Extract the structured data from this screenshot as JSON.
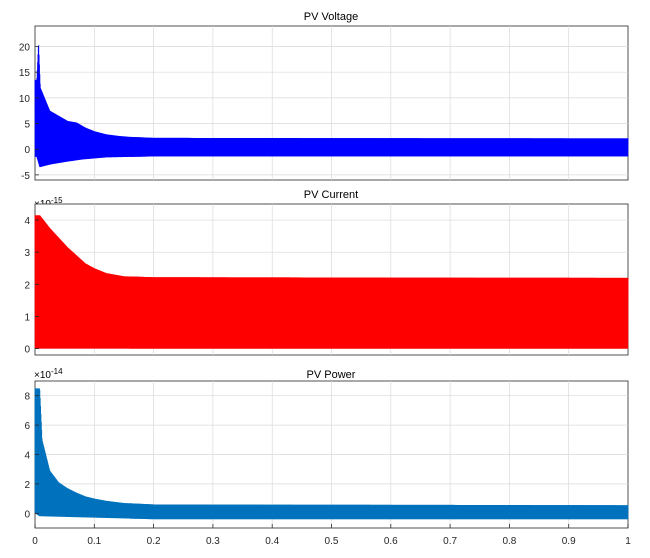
{
  "chart_data": [
    {
      "type": "line",
      "title": "PV Voltage",
      "xlim": [
        0,
        1
      ],
      "ylim": [
        -6,
        24
      ],
      "yticks": [
        20,
        15,
        10,
        5,
        0,
        -5
      ],
      "ytick_labels": [
        "20",
        "15",
        "10",
        "5",
        "0",
        "-5"
      ],
      "exponent_label": "",
      "grid": true,
      "color": "#0000ff",
      "series": [
        {
          "peaks": [
            [
              0.003,
              13.5
            ],
            [
              0.006,
              21
            ],
            [
              0.009,
              12
            ],
            [
              0.025,
              7.5
            ],
            [
              0.04,
              6.5
            ],
            [
              0.055,
              5.5
            ],
            [
              0.07,
              5.2
            ],
            [
              0.085,
              4.2
            ],
            [
              0.1,
              3.5
            ],
            [
              0.12,
              2.9
            ],
            [
              0.14,
              2.6
            ],
            [
              0.16,
              2.4
            ],
            [
              0.2,
              2.2
            ],
            [
              1.0,
              2.1
            ]
          ],
          "troughs": [
            [
              0.003,
              -1.5
            ],
            [
              0.008,
              -3.5
            ],
            [
              0.025,
              -3.0
            ],
            [
              0.05,
              -2.5
            ],
            [
              0.08,
              -2.0
            ],
            [
              0.12,
              -1.6
            ],
            [
              0.2,
              -1.4
            ],
            [
              1.0,
              -1.4
            ]
          ]
        }
      ]
    },
    {
      "type": "line",
      "title": "PV Current",
      "xlim": [
        0,
        1
      ],
      "ylim": [
        -0.2,
        4.5
      ],
      "yticks": [
        4,
        3,
        2,
        1,
        0
      ],
      "ytick_labels": [
        "4",
        "3",
        "2",
        "1",
        "0"
      ],
      "exponent_label": "×10",
      "exponent_power": "-15",
      "grid": true,
      "color": "#ff0000",
      "series": [
        {
          "peaks": [
            [
              0.008,
              4.15
            ],
            [
              0.025,
              3.75
            ],
            [
              0.04,
              3.45
            ],
            [
              0.055,
              3.15
            ],
            [
              0.07,
              2.9
            ],
            [
              0.085,
              2.65
            ],
            [
              0.1,
              2.5
            ],
            [
              0.12,
              2.35
            ],
            [
              0.15,
              2.25
            ],
            [
              0.2,
              2.22
            ],
            [
              1.0,
              2.2
            ]
          ],
          "troughs": [
            [
              0.0,
              0.0
            ],
            [
              1.0,
              0.0
            ]
          ]
        }
      ]
    },
    {
      "type": "line",
      "title": "PV Power",
      "xlim": [
        0,
        1
      ],
      "ylim": [
        -1,
        9
      ],
      "yticks": [
        8,
        6,
        4,
        2,
        0
      ],
      "ytick_labels": [
        "8",
        "6",
        "4",
        "2",
        "0"
      ],
      "exponent_label": "×10",
      "exponent_power": "-14",
      "grid": true,
      "color": "#0072bd",
      "xticks": [
        0,
        0.1,
        0.2,
        0.3,
        0.4,
        0.5,
        0.6,
        0.7,
        0.8,
        0.9,
        1
      ],
      "xtick_labels": [
        "0",
        "0.1",
        "0.2",
        "0.3",
        "0.4",
        "0.5",
        "0.6",
        "0.7",
        "0.8",
        "0.9",
        "1"
      ],
      "series": [
        {
          "peaks": [
            [
              0.008,
              8.5
            ],
            [
              0.012,
              5.0
            ],
            [
              0.025,
              2.9
            ],
            [
              0.04,
              2.1
            ],
            [
              0.055,
              1.7
            ],
            [
              0.07,
              1.4
            ],
            [
              0.085,
              1.15
            ],
            [
              0.1,
              1.0
            ],
            [
              0.12,
              0.85
            ],
            [
              0.15,
              0.7
            ],
            [
              0.2,
              0.6
            ],
            [
              1.0,
              0.55
            ]
          ],
          "troughs": [
            [
              0.0,
              0.0
            ],
            [
              0.008,
              -0.2
            ],
            [
              0.2,
              -0.4
            ],
            [
              1.0,
              -0.4
            ]
          ]
        }
      ]
    }
  ]
}
